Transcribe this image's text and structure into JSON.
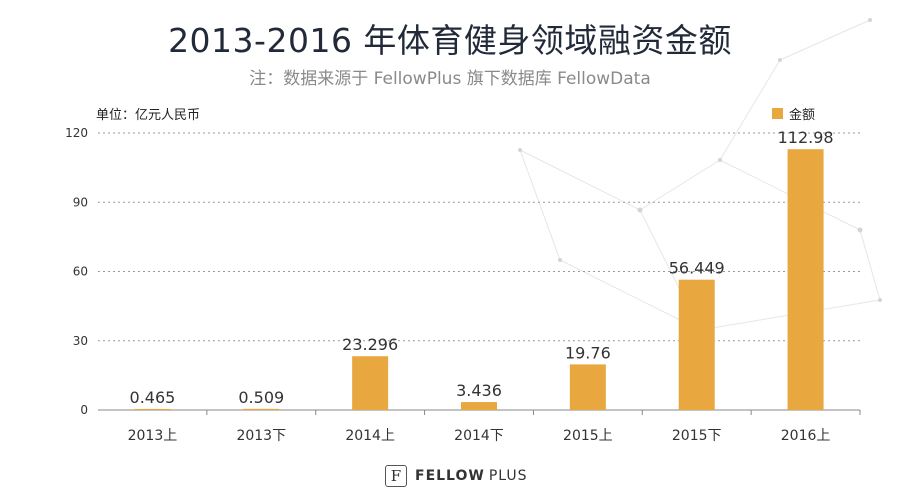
{
  "header": {
    "title": "2013-2016 年体育健身领域融资金额",
    "subtitle": "注：数据来源于 FellowPlus 旗下数据库 FellowData"
  },
  "unit_label": "单位：亿元人民币",
  "logo": {
    "mark": "F",
    "brand_bold": "FELLOW",
    "brand_light": "PLUS"
  },
  "colors": {
    "bar": "#E8A73F",
    "grid": "#9a9a9a",
    "axis": "#888888",
    "text": "#333333"
  },
  "chart_data": {
    "type": "bar",
    "title": "2013-2016 年体育健身领域融资金额",
    "ylabel": "单位：亿元人民币",
    "xlabel": "",
    "ylim": [
      0,
      120
    ],
    "yticks": [
      0,
      30,
      60,
      90,
      120
    ],
    "grid": true,
    "legend_position": "top-right",
    "categories": [
      "2013上",
      "2013下",
      "2014上",
      "2014下",
      "2015上",
      "2015下",
      "2016上"
    ],
    "series": [
      {
        "name": "金额",
        "values": [
          0.465,
          0.509,
          23.296,
          3.436,
          19.76,
          56.449,
          112.98
        ],
        "labels": [
          "0.465",
          "0.509",
          "23.296",
          "3.436",
          "19.76",
          "56.449",
          "112.98"
        ]
      }
    ]
  }
}
